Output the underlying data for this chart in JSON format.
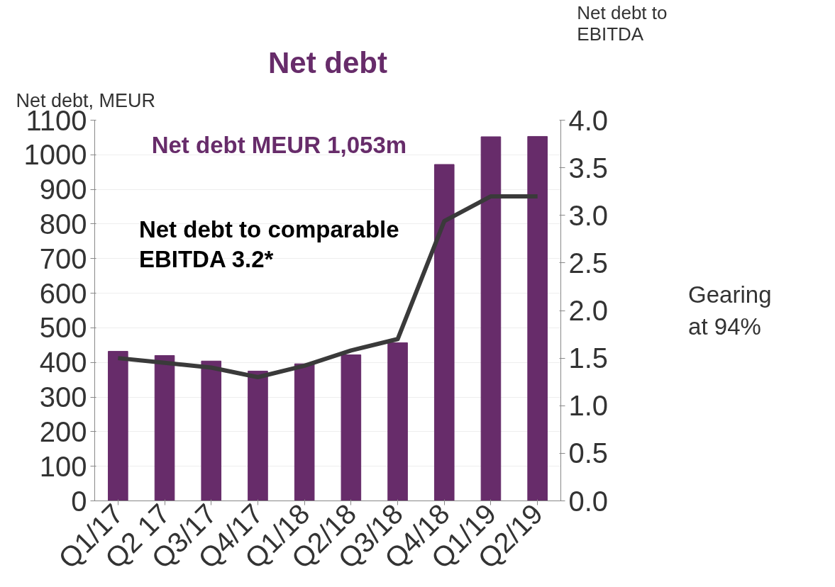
{
  "chart_data": {
    "type": "bar",
    "title": "Net debt",
    "ylabel": "Net debt, MEUR",
    "y2label": "Net debt to\nEBITDA",
    "categories": [
      "Q1/17",
      "Q2 17",
      "Q3/17",
      "Q4/17",
      "Q1/18",
      "Q2/18",
      "Q3/18",
      "Q4/18",
      "Q1/19",
      "Q2/19"
    ],
    "series": [
      {
        "color": "#672c6a",
        "values": [
          432,
          420,
          404,
          375,
          396,
          422,
          457,
          972,
          1052,
          1053
        ]
      },
      {
        "type": "line",
        "axis": "y2",
        "color": "#3a3a3a",
        "values": [
          1.5,
          1.45,
          1.4,
          1.3,
          1.42,
          1.58,
          1.7,
          2.94,
          3.2,
          3.2
        ]
      }
    ],
    "ylim": [
      0,
      1100
    ],
    "yticks": [
      0,
      100,
      200,
      300,
      400,
      500,
      600,
      700,
      800,
      900,
      1000,
      1100
    ],
    "y2lim": [
      0,
      4.0
    ],
    "y2ticks": [
      {
        "value": 0,
        "label": "0.0"
      },
      {
        "value": 0.5,
        "label": "0.5"
      },
      {
        "value": 1,
        "label": "1.0"
      },
      {
        "value": 1.5,
        "label": "1.5"
      },
      {
        "value": 2,
        "label": "2.0"
      },
      {
        "value": 2.5,
        "label": "2.5"
      },
      {
        "value": 3,
        "label": "3.0"
      },
      {
        "value": 3.5,
        "label": "3.5"
      },
      {
        "value": 4,
        "label": "4.0"
      }
    ],
    "grid": "y",
    "line_style": "solid",
    "marker": "none",
    "annotations": [
      "Net debt MEUR 1,053m",
      "Net debt to comparable\nEBITDA 3.2*",
      "Gearing\nat 94%"
    ]
  }
}
